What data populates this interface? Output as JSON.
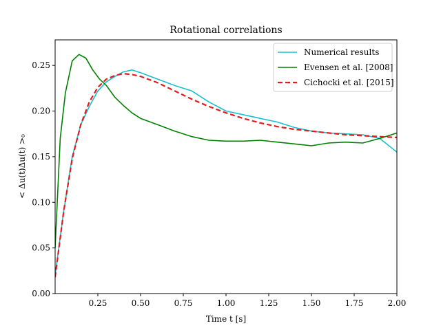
{
  "chart_data": {
    "type": "line",
    "title": "Rotational correlations",
    "xlabel": "Time t [s]",
    "ylabel": "< Δu(t)Δu(t) >₀",
    "xlim": [
      0.0,
      2.0
    ],
    "ylim": [
      0.0,
      0.278
    ],
    "xticks": [
      0.25,
      0.5,
      0.75,
      1.0,
      1.25,
      1.5,
      1.75,
      2.0
    ],
    "xtick_labels": [
      "0.25",
      "0.50",
      "0.75",
      "1.00",
      "1.25",
      "1.50",
      "1.75",
      "2.00"
    ],
    "yticks": [
      0.0,
      0.05,
      0.1,
      0.15,
      0.2,
      0.25
    ],
    "ytick_labels": [
      "0.00",
      "0.05",
      "0.10",
      "0.15",
      "0.20",
      "0.25"
    ],
    "grid": false,
    "legend_position": "top-right",
    "series": [
      {
        "name": "Numerical results",
        "color": "#17becf",
        "style": "solid",
        "x": [
          0.0,
          0.05,
          0.1,
          0.15,
          0.2,
          0.25,
          0.3,
          0.35,
          0.4,
          0.45,
          0.5,
          0.6,
          0.7,
          0.8,
          0.9,
          1.0,
          1.1,
          1.2,
          1.3,
          1.4,
          1.5,
          1.6,
          1.7,
          1.8,
          1.9,
          2.0
        ],
        "y": [
          0.02,
          0.09,
          0.15,
          0.185,
          0.205,
          0.222,
          0.232,
          0.238,
          0.243,
          0.245,
          0.242,
          0.235,
          0.228,
          0.222,
          0.21,
          0.2,
          0.196,
          0.192,
          0.188,
          0.182,
          0.178,
          0.176,
          0.175,
          0.174,
          0.17,
          0.155
        ]
      },
      {
        "name": "Evensen et al. [2008]",
        "color": "#008000",
        "style": "solid",
        "x": [
          0.0,
          0.03,
          0.06,
          0.1,
          0.14,
          0.18,
          0.22,
          0.26,
          0.3,
          0.35,
          0.4,
          0.45,
          0.5,
          0.6,
          0.7,
          0.8,
          0.9,
          1.0,
          1.1,
          1.2,
          1.3,
          1.4,
          1.5,
          1.6,
          1.7,
          1.8,
          1.9,
          2.0
        ],
        "y": [
          0.05,
          0.17,
          0.22,
          0.255,
          0.262,
          0.258,
          0.245,
          0.235,
          0.228,
          0.215,
          0.206,
          0.198,
          0.192,
          0.185,
          0.178,
          0.172,
          0.168,
          0.167,
          0.167,
          0.168,
          0.166,
          0.164,
          0.162,
          0.165,
          0.166,
          0.165,
          0.17,
          0.176
        ]
      },
      {
        "name": "Cichocki et al. [2015]",
        "color": "#e31a1c",
        "style": "dashed",
        "x": [
          0.0,
          0.05,
          0.1,
          0.15,
          0.2,
          0.25,
          0.3,
          0.35,
          0.4,
          0.45,
          0.5,
          0.6,
          0.7,
          0.8,
          0.9,
          1.0,
          1.1,
          1.2,
          1.3,
          1.4,
          1.5,
          1.6,
          1.7,
          1.8,
          1.9,
          2.0
        ],
        "y": [
          0.018,
          0.09,
          0.148,
          0.185,
          0.21,
          0.226,
          0.235,
          0.239,
          0.241,
          0.24,
          0.238,
          0.231,
          0.222,
          0.213,
          0.205,
          0.198,
          0.192,
          0.187,
          0.183,
          0.18,
          0.178,
          0.176,
          0.174,
          0.173,
          0.172,
          0.171
        ]
      }
    ]
  },
  "colors": {
    "axis": "#000000",
    "background": "#ffffff"
  }
}
